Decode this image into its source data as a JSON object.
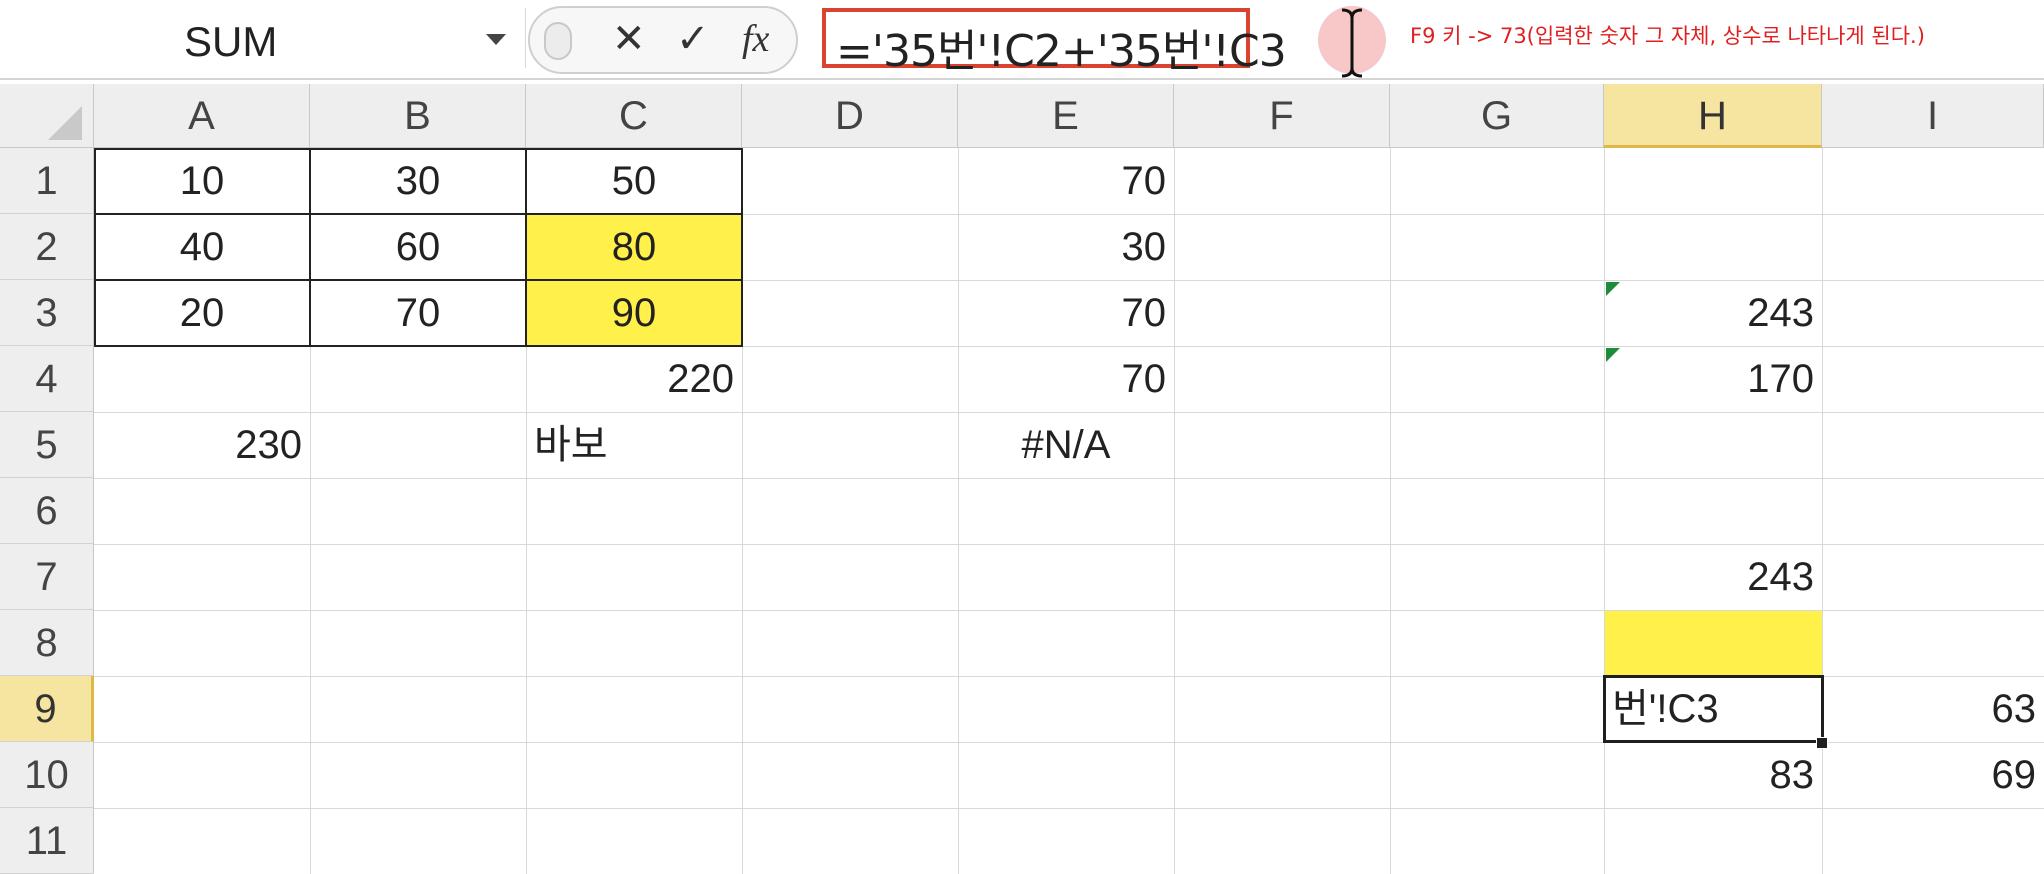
{
  "name_box": {
    "value": "SUM"
  },
  "formula_bar": {
    "cancel_symbol": "✕",
    "enter_symbol": "✓",
    "fx_label": "fx",
    "formula": "='35번'!C2+'35번'!C3"
  },
  "annotation": "F9 키 -> 73(입력한 숫자 그 자체, 상수로 나타나게 된다.)",
  "colors": {
    "accent_red": "#d9432f",
    "highlight_yellow": "#fff04a",
    "header_selected": "#f6e5a0"
  },
  "columns": [
    "A",
    "B",
    "C",
    "D",
    "E",
    "F",
    "G",
    "H",
    "I"
  ],
  "rows": [
    "1",
    "2",
    "3",
    "4",
    "5",
    "6",
    "7",
    "8",
    "9",
    "10",
    "11"
  ],
  "selected_column": "H",
  "selected_row": "9",
  "cells": {
    "A1": "10",
    "B1": "30",
    "C1": "50",
    "E1": "70",
    "A2": "40",
    "B2": "60",
    "C2": "80",
    "E2": "30",
    "A3": "20",
    "B3": "70",
    "C3": "90",
    "E3": "70",
    "H3": "243",
    "C4": "220",
    "E4": "70",
    "H4": "170",
    "A5": "230",
    "C5": "바보",
    "E5": "#N/A",
    "H7": "243",
    "H9": "번'!C3",
    "I9": "63",
    "H10": "83",
    "I10": "69"
  }
}
